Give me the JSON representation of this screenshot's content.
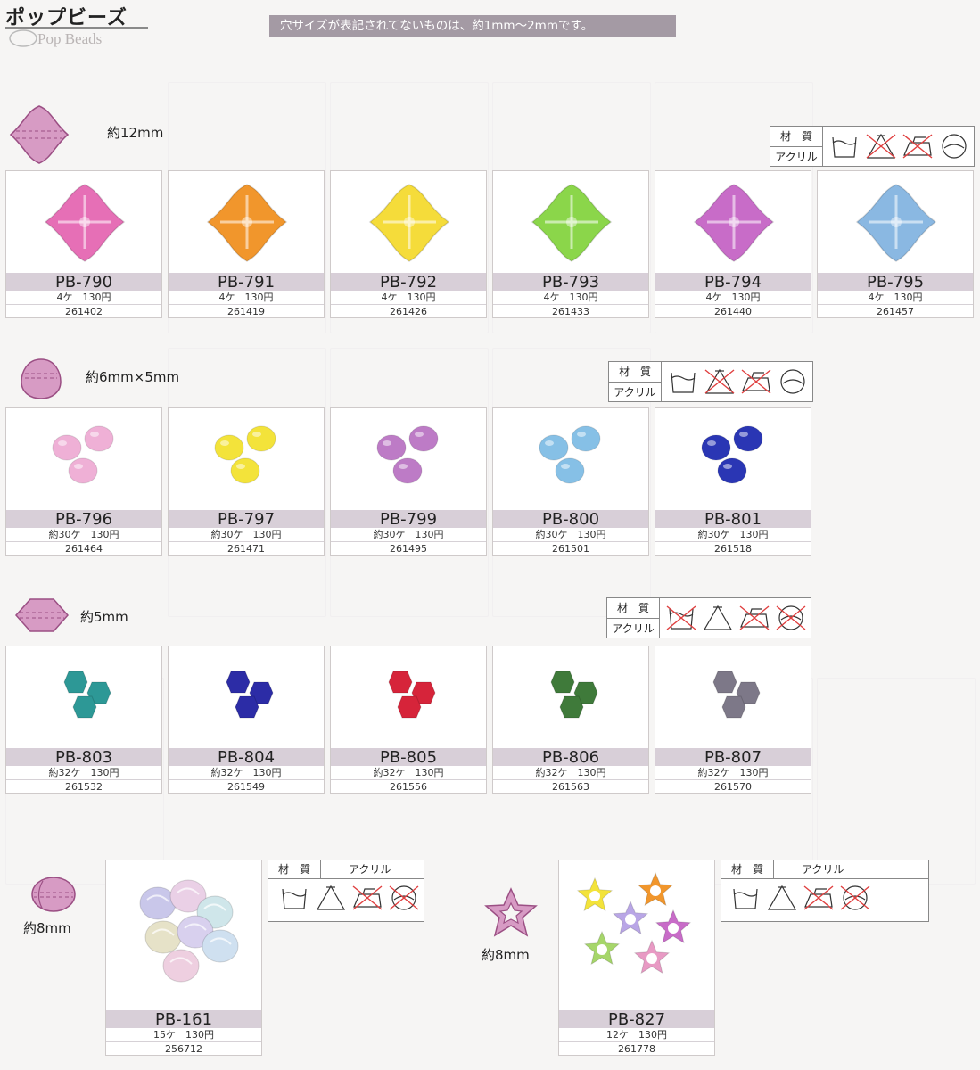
{
  "header": {
    "title": "ポップビーズ",
    "subtitle": "Pop Beads",
    "notice": "穴サイズが表記されてないものは、約1mm～2mmです。"
  },
  "material": {
    "label": "材　質",
    "value": "アクリル"
  },
  "colors": {
    "band": "#d8cfd8",
    "notice_bg": "#a49aa4",
    "shape_fill": "#d79bc4",
    "shape_stroke": "#9b4f84"
  },
  "groups": [
    {
      "size": "約12mm",
      "shape": "flower-bead-shape",
      "care_icons": [
        "pot-40-icon",
        "chlorine-bleach-crossed-icon",
        "iron-crossed-icon",
        "dry-clean-icon"
      ],
      "products": [
        {
          "code": "PB-790",
          "qty": "4ケ　130円",
          "jan": "261402",
          "color": "#e66fb6"
        },
        {
          "code": "PB-791",
          "qty": "4ケ　130円",
          "jan": "261419",
          "color": "#f1962c"
        },
        {
          "code": "PB-792",
          "qty": "4ケ　130円",
          "jan": "261426",
          "color": "#f5dc3a"
        },
        {
          "code": "PB-793",
          "qty": "4ケ　130円",
          "jan": "261433",
          "color": "#8bd64a"
        },
        {
          "code": "PB-794",
          "qty": "4ケ　130円",
          "jan": "261440",
          "color": "#c86cc8"
        },
        {
          "code": "PB-795",
          "qty": "4ケ　130円",
          "jan": "261457",
          "color": "#8ab8e2"
        }
      ]
    },
    {
      "size": "約6mm×5mm",
      "shape": "drop-bead-shape",
      "care_icons": [
        "pot-40-icon",
        "chlorine-bleach-crossed-icon",
        "iron-crossed-icon",
        "dry-clean-icon"
      ],
      "products": [
        {
          "code": "PB-796",
          "qty": "約30ケ　130円",
          "jan": "261464",
          "color": "#efb0d6"
        },
        {
          "code": "PB-797",
          "qty": "約30ケ　130円",
          "jan": "261471",
          "color": "#f3e33a"
        },
        {
          "code": "PB-799",
          "qty": "約30ケ　130円",
          "jan": "261495",
          "color": "#bd7bc6"
        },
        {
          "code": "PB-800",
          "qty": "約30ケ　130円",
          "jan": "261501",
          "color": "#86c0e6"
        },
        {
          "code": "PB-801",
          "qty": "約30ケ　130円",
          "jan": "261518",
          "color": "#2a36b4"
        }
      ]
    },
    {
      "size": "約5mm",
      "shape": "bicone-bead-shape",
      "care_icons": [
        "wash-crossed-icon",
        "chlorine-bleach-icon",
        "iron-crossed-icon",
        "dry-clean-crossed-icon"
      ],
      "products": [
        {
          "code": "PB-803",
          "qty": "約32ケ　130円",
          "jan": "261532",
          "color": "#2d9896"
        },
        {
          "code": "PB-804",
          "qty": "約32ケ　130円",
          "jan": "261549",
          "color": "#2c2ca6"
        },
        {
          "code": "PB-805",
          "qty": "約32ケ　130円",
          "jan": "261556",
          "color": "#d6243a"
        },
        {
          "code": "PB-806",
          "qty": "約32ケ　130円",
          "jan": "261563",
          "color": "#3f7a3a"
        },
        {
          "code": "PB-807",
          "qty": "約32ケ　130円",
          "jan": "261570",
          "color": "#7d7888"
        }
      ]
    },
    {
      "size": "約8mm",
      "shape": "nugget-bead-shape",
      "care_icons": [
        "pot-40-icon",
        "chlorine-bleach-icon",
        "iron-crossed-icon",
        "dry-clean-crossed-icon"
      ],
      "products": [
        {
          "code": "PB-161",
          "qty": "15ケ　130円",
          "jan": "256712",
          "color": "#c9c7ea"
        }
      ]
    },
    {
      "size": "約8mm",
      "shape": "star-bead-shape",
      "care_icons": [
        "hand-wash-30-icon",
        "chlorine-bleach-icon",
        "iron-crossed-icon",
        "dry-clean-crossed-icon"
      ],
      "products": [
        {
          "code": "PB-827",
          "qty": "12ケ　130円",
          "jan": "261778",
          "color": "#e68ac8"
        }
      ]
    }
  ]
}
